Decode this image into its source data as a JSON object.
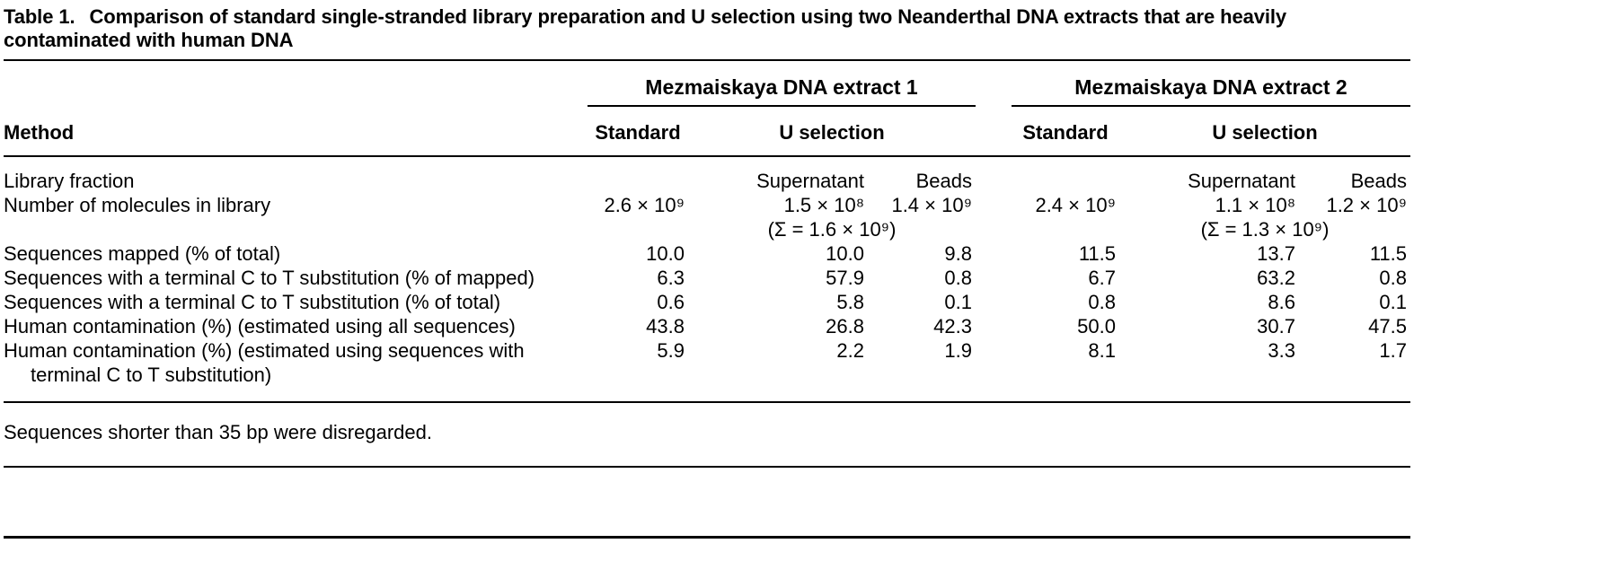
{
  "caption": {
    "label": "Table 1.",
    "text": "Comparison of standard single-stranded library preparation and U selection using two Neanderthal DNA extracts that are heavily contaminated with human DNA"
  },
  "header": {
    "method": "Method",
    "groups": [
      {
        "name": "Mezmaiskaya DNA extract 1",
        "standard": "Standard",
        "u_selection": "U selection"
      },
      {
        "name": "Mezmaiskaya DNA extract 2",
        "standard": "Standard",
        "u_selection": "U selection"
      }
    ]
  },
  "rows": [
    {
      "label": "Library fraction",
      "cells": [
        "",
        "Supernatant",
        "Beads",
        "",
        "Supernatant",
        "Beads"
      ]
    },
    {
      "label": "Number of molecules in library",
      "cells": [
        "2.6 × 10⁹",
        "1.5 × 10⁸",
        "1.4 × 10⁹",
        "2.4 × 10⁹",
        "1.1 × 10⁸",
        "1.2 × 10⁹"
      ]
    },
    {
      "label": "",
      "sigma_extract_1": "(Σ = 1.6 × 10⁹)",
      "sigma_extract_2": "(Σ = 1.3 × 10⁹)"
    },
    {
      "label": "Sequences mapped (% of total)",
      "cells": [
        "10.0",
        "10.0",
        "9.8",
        "11.5",
        "13.7",
        "11.5"
      ]
    },
    {
      "label": "Sequences with a terminal C to T substitution (% of mapped)",
      "cells": [
        "6.3",
        "57.9",
        "0.8",
        "6.7",
        "63.2",
        "0.8"
      ]
    },
    {
      "label": "Sequences with a terminal C to T substitution (% of total)",
      "cells": [
        "0.6",
        "5.8",
        "0.1",
        "0.8",
        "8.6",
        "0.1"
      ]
    },
    {
      "label": "Human contamination (%) (estimated using all sequences)",
      "cells": [
        "43.8",
        "26.8",
        "42.3",
        "50.0",
        "30.7",
        "47.5"
      ]
    },
    {
      "label": "Human contamination (%) (estimated using sequences with terminal C to T substitution)",
      "cells": [
        "5.9",
        "2.2",
        "1.9",
        "8.1",
        "3.3",
        "1.7"
      ]
    }
  ],
  "footnote": "Sequences shorter than 35 bp were disregarded.",
  "colors": {
    "text": "#000000",
    "background": "#ffffff",
    "rule": "#000000"
  }
}
